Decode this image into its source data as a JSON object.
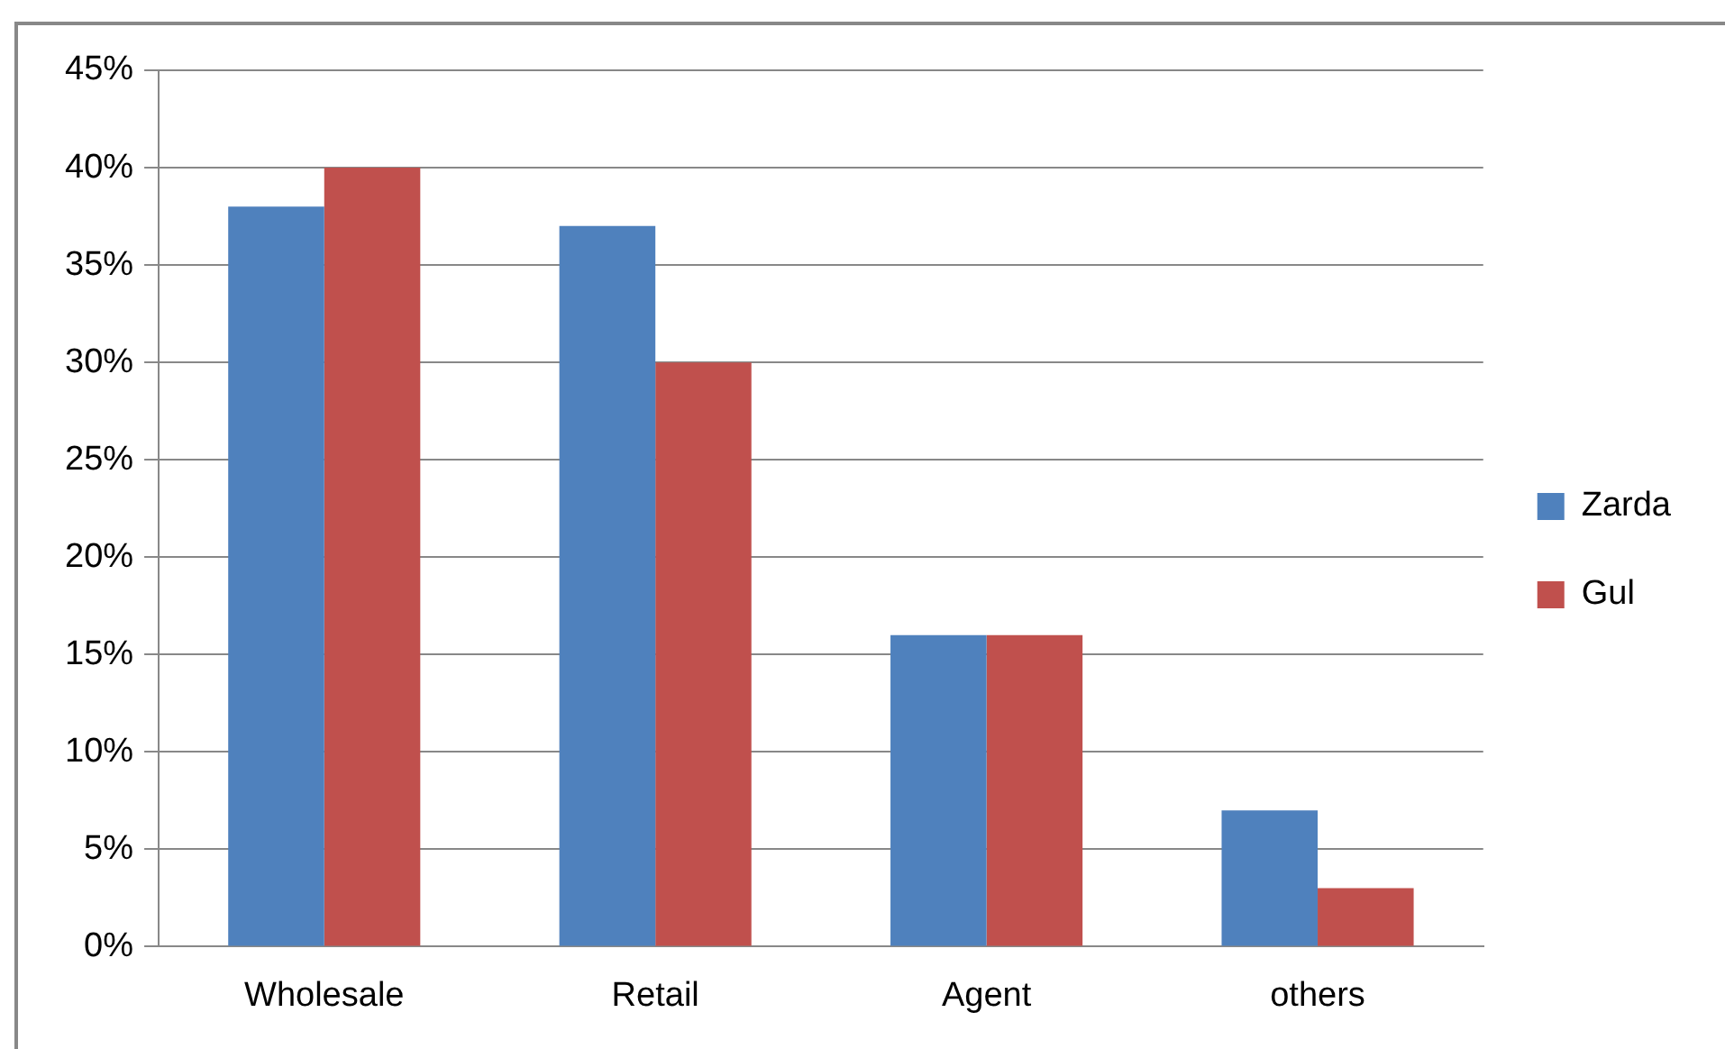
{
  "chart_data": {
    "type": "bar",
    "categories": [
      "Wholesale",
      "Retail",
      "Agent",
      "others"
    ],
    "series": [
      {
        "name": "Zarda",
        "color": "#4f81bd",
        "values": [
          38,
          37,
          16,
          7
        ]
      },
      {
        "name": "Gul",
        "color": "#c0504d",
        "values": [
          40,
          30,
          16,
          3
        ]
      }
    ],
    "ylim": [
      0,
      45
    ],
    "yticks": [
      {
        "value": 0,
        "label": "0%"
      },
      {
        "value": 5,
        "label": "5%"
      },
      {
        "value": 10,
        "label": "10%"
      },
      {
        "value": 15,
        "label": "15%"
      },
      {
        "value": 20,
        "label": "20%"
      },
      {
        "value": 25,
        "label": "25%"
      },
      {
        "value": 30,
        "label": "30%"
      },
      {
        "value": 35,
        "label": "35%"
      },
      {
        "value": 40,
        "label": "40%"
      },
      {
        "value": 45,
        "label": "45%"
      }
    ],
    "grid": "y",
    "legend": "right"
  }
}
